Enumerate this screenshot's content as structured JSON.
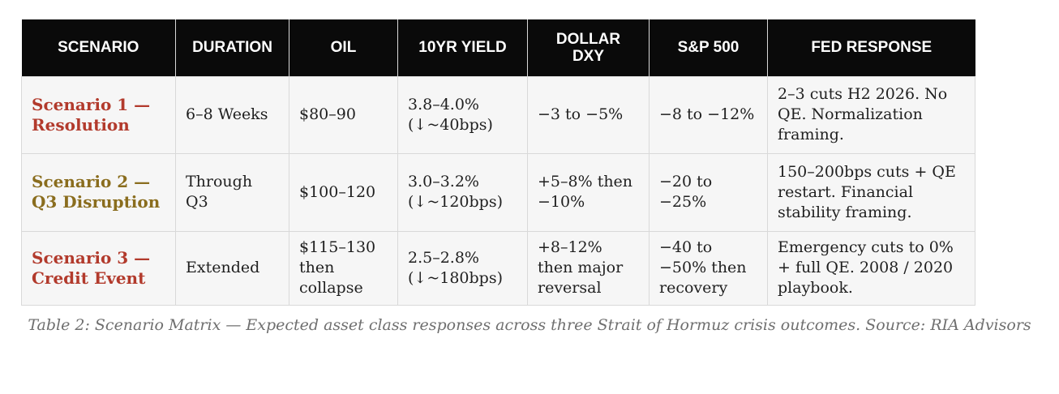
{
  "colors": {
    "header_bg": "#0a0a0a",
    "header_text": "#ffffff",
    "cell_bg": "#f6f6f6",
    "scenario_1": "#b23a2c",
    "scenario_2": "#8a6d1e",
    "scenario_3": "#b23a2c",
    "caption": "#6f6f6f"
  },
  "table": {
    "headers": [
      "SCENARIO",
      "DURATION",
      "OIL",
      "10YR YIELD",
      "DOLLAR\nDXY",
      "S&P 500",
      "FED RESPONSE"
    ],
    "rows": [
      {
        "scenario": "Scenario 1 — Resolution",
        "duration": "6–8 Weeks",
        "oil": "$80–90",
        "yield": "3.8–4.0% (↓~40bps)",
        "dxy": "−3 to −5%",
        "sp500": "−8 to −12%",
        "fed": "2–3 cuts H2 2026. No QE. Normalization framing."
      },
      {
        "scenario": "Scenario 2 — Q3 Disruption",
        "duration": "Through Q3",
        "oil": "$100–120",
        "yield": "3.0–3.2% (↓~120bps)",
        "dxy": "+5–8% then −10%",
        "sp500": "−20 to −25%",
        "fed": "150–200bps cuts + QE restart. Financial stability framing."
      },
      {
        "scenario": "Scenario 3 — Credit Event",
        "duration": "Extended",
        "oil": "$115–130 then collapse",
        "yield": "2.5–2.8% (↓~180bps)",
        "dxy": "+8–12% then major reversal",
        "sp500": "−40 to −50% then recovery",
        "fed": "Emergency cuts to 0% + full QE. 2008 / 2020 playbook."
      }
    ]
  },
  "caption": "Table 2: Scenario Matrix — Expected asset class responses across three Strait of Hormuz crisis outcomes.  Source: RIA Advisors"
}
